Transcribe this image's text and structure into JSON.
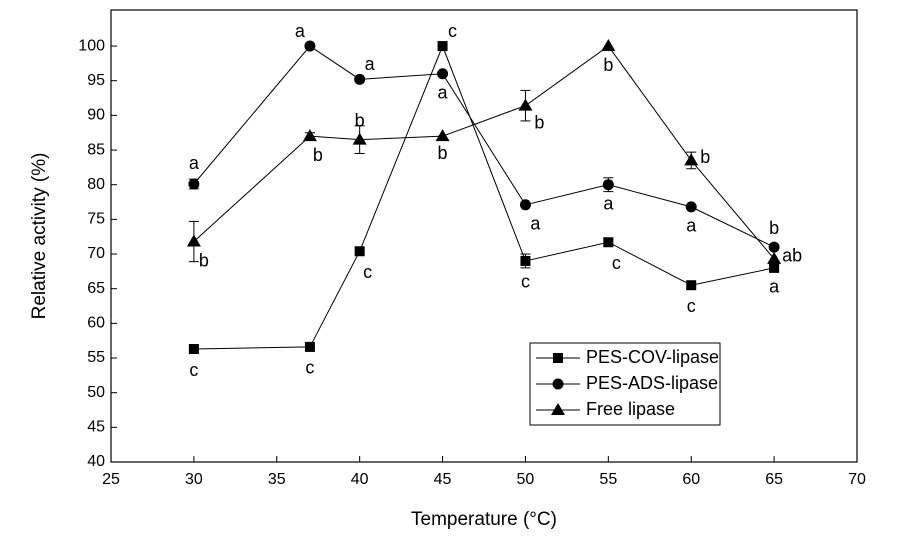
{
  "chart_data": {
    "type": "line",
    "x_label": "Temperature (°C)",
    "y_label": "Relative activity (%)",
    "x": [
      30,
      37,
      40,
      45,
      50,
      55,
      60,
      65
    ],
    "series": [
      {
        "name": "PES-COV-lipase",
        "color": "#000000",
        "marker": "square",
        "values": [
          56.3,
          56.6,
          70.4,
          100,
          69,
          71.7,
          65.5,
          68
        ],
        "errors": [
          0,
          0,
          0,
          0,
          1,
          0.5,
          0,
          0.5
        ],
        "labels": [
          "c",
          "c",
          "c",
          "c",
          "c",
          "c",
          "c",
          "a"
        ]
      },
      {
        "name": "PES-ADS-lipase",
        "color": "#000000",
        "marker": "circle",
        "values": [
          80.1,
          100,
          95.2,
          96,
          77.1,
          80,
          76.8,
          71
        ],
        "errors": [
          0.7,
          0,
          0,
          0,
          0,
          1,
          0,
          0
        ],
        "labels": [
          "a",
          "a",
          "a",
          "a",
          "a",
          "a",
          "a",
          "b"
        ]
      },
      {
        "name": "Free lipase",
        "color": "#000000",
        "marker": "triangle",
        "values": [
          71.8,
          87,
          86.5,
          87,
          91.4,
          100,
          83.5,
          69.3
        ],
        "errors": [
          2.9,
          0.5,
          2,
          0,
          2.2,
          0,
          1.2,
          0
        ],
        "labels": [
          "b",
          "b",
          "b",
          "b",
          "b",
          "b",
          "b",
          "ab"
        ]
      }
    ],
    "xlim": [
      25,
      70
    ],
    "ylim": [
      40,
      105.2
    ],
    "xticks": [
      25,
      30,
      35,
      40,
      45,
      50,
      55,
      60,
      65,
      70
    ],
    "yticks": [
      40,
      45,
      50,
      55,
      60,
      65,
      70,
      75,
      80,
      85,
      90,
      95,
      100
    ],
    "legend": "lower-right",
    "grid": false
  }
}
